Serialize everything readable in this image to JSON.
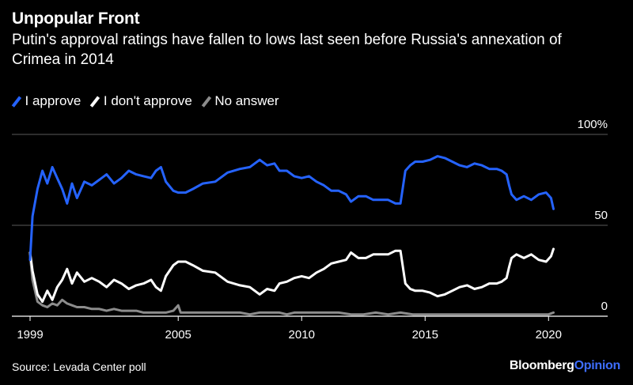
{
  "title": "Unpopular Front",
  "subtitle": "Putin's approval ratings have fallen to lows last seen before Russia's annexation of Crimea in 2014",
  "legend": [
    {
      "label": "I approve",
      "color": "#2563ff"
    },
    {
      "label": "I don't approve",
      "color": "#ffffff"
    },
    {
      "label": "No answer",
      "color": "#8c8c8c"
    }
  ],
  "source": "Source: Levada Center poll",
  "brand": {
    "part1": "Bloomberg",
    "part2": "Opinion"
  },
  "chart_data": {
    "type": "line",
    "x_ticks": [
      "1999",
      "2005",
      "2010",
      "2015",
      "2020"
    ],
    "y_ticks": [
      "100%",
      "50",
      "0"
    ],
    "ylim": [
      0,
      100
    ],
    "xlim": [
      1999.0,
      2020.6
    ],
    "series": [
      {
        "name": "I approve",
        "color": "#2563ff",
        "points": [
          [
            1999.0,
            31
          ],
          [
            1999.1,
            55
          ],
          [
            1999.3,
            70
          ],
          [
            1999.5,
            80
          ],
          [
            1999.7,
            73
          ],
          [
            1999.9,
            82
          ],
          [
            2000.1,
            76
          ],
          [
            2000.3,
            70
          ],
          [
            2000.5,
            62
          ],
          [
            2000.7,
            73
          ],
          [
            2000.9,
            65
          ],
          [
            2001.2,
            74
          ],
          [
            2001.5,
            72
          ],
          [
            2001.8,
            75
          ],
          [
            2002.1,
            78
          ],
          [
            2002.4,
            73
          ],
          [
            2002.7,
            76
          ],
          [
            2003.0,
            80
          ],
          [
            2003.3,
            78
          ],
          [
            2003.6,
            77
          ],
          [
            2003.9,
            76
          ],
          [
            2004.1,
            80
          ],
          [
            2004.3,
            82
          ],
          [
            2004.5,
            74
          ],
          [
            2004.8,
            69
          ],
          [
            2005.0,
            68
          ],
          [
            2005.3,
            68
          ],
          [
            2005.6,
            70
          ],
          [
            2006.0,
            73
          ],
          [
            2006.5,
            74
          ],
          [
            2007.0,
            79
          ],
          [
            2007.5,
            81
          ],
          [
            2007.9,
            82
          ],
          [
            2008.3,
            86
          ],
          [
            2008.6,
            83
          ],
          [
            2008.9,
            84
          ],
          [
            2009.1,
            80
          ],
          [
            2009.4,
            80
          ],
          [
            2009.7,
            77
          ],
          [
            2010.0,
            76
          ],
          [
            2010.3,
            77
          ],
          [
            2010.6,
            74
          ],
          [
            2010.9,
            72
          ],
          [
            2011.2,
            69
          ],
          [
            2011.5,
            69
          ],
          [
            2011.8,
            67
          ],
          [
            2012.0,
            63
          ],
          [
            2012.3,
            66
          ],
          [
            2012.6,
            66
          ],
          [
            2012.9,
            64
          ],
          [
            2013.2,
            64
          ],
          [
            2013.5,
            64
          ],
          [
            2013.8,
            62
          ],
          [
            2014.0,
            62
          ],
          [
            2014.1,
            71
          ],
          [
            2014.2,
            80
          ],
          [
            2014.4,
            83
          ],
          [
            2014.6,
            85
          ],
          [
            2014.9,
            85
          ],
          [
            2015.2,
            86
          ],
          [
            2015.5,
            88
          ],
          [
            2015.8,
            87
          ],
          [
            2016.1,
            85
          ],
          [
            2016.4,
            83
          ],
          [
            2016.7,
            82
          ],
          [
            2017.0,
            84
          ],
          [
            2017.3,
            83
          ],
          [
            2017.6,
            81
          ],
          [
            2017.9,
            81
          ],
          [
            2018.1,
            80
          ],
          [
            2018.3,
            78
          ],
          [
            2018.4,
            72
          ],
          [
            2018.5,
            67
          ],
          [
            2018.7,
            64
          ],
          [
            2019.0,
            66
          ],
          [
            2019.3,
            64
          ],
          [
            2019.6,
            67
          ],
          [
            2019.9,
            68
          ],
          [
            2020.1,
            65
          ],
          [
            2020.2,
            59
          ]
        ]
      },
      {
        "name": "I don't approve",
        "color": "#ffffff",
        "points": [
          [
            1999.0,
            35
          ],
          [
            1999.1,
            25
          ],
          [
            1999.3,
            12
          ],
          [
            1999.5,
            8
          ],
          [
            1999.7,
            14
          ],
          [
            1999.9,
            9
          ],
          [
            2000.1,
            16
          ],
          [
            2000.3,
            20
          ],
          [
            2000.5,
            26
          ],
          [
            2000.7,
            18
          ],
          [
            2000.9,
            24
          ],
          [
            2001.2,
            19
          ],
          [
            2001.5,
            21
          ],
          [
            2001.8,
            19
          ],
          [
            2002.1,
            16
          ],
          [
            2002.4,
            20
          ],
          [
            2002.7,
            18
          ],
          [
            2003.0,
            15
          ],
          [
            2003.3,
            17
          ],
          [
            2003.6,
            18
          ],
          [
            2003.9,
            20
          ],
          [
            2004.1,
            16
          ],
          [
            2004.3,
            14
          ],
          [
            2004.5,
            22
          ],
          [
            2004.8,
            28
          ],
          [
            2005.0,
            30
          ],
          [
            2005.3,
            30
          ],
          [
            2005.6,
            28
          ],
          [
            2006.0,
            25
          ],
          [
            2006.5,
            24
          ],
          [
            2007.0,
            19
          ],
          [
            2007.5,
            17
          ],
          [
            2007.9,
            16
          ],
          [
            2008.3,
            12
          ],
          [
            2008.6,
            15
          ],
          [
            2008.9,
            14
          ],
          [
            2009.1,
            18
          ],
          [
            2009.4,
            19
          ],
          [
            2009.7,
            21
          ],
          [
            2010.0,
            22
          ],
          [
            2010.3,
            21
          ],
          [
            2010.6,
            24
          ],
          [
            2010.9,
            26
          ],
          [
            2011.2,
            29
          ],
          [
            2011.5,
            30
          ],
          [
            2011.8,
            31
          ],
          [
            2012.0,
            35
          ],
          [
            2012.3,
            32
          ],
          [
            2012.6,
            32
          ],
          [
            2012.9,
            34
          ],
          [
            2013.2,
            34
          ],
          [
            2013.5,
            34
          ],
          [
            2013.8,
            36
          ],
          [
            2014.0,
            36
          ],
          [
            2014.1,
            27
          ],
          [
            2014.2,
            18
          ],
          [
            2014.4,
            15
          ],
          [
            2014.6,
            14
          ],
          [
            2014.9,
            14
          ],
          [
            2015.2,
            13
          ],
          [
            2015.5,
            11
          ],
          [
            2015.8,
            12
          ],
          [
            2016.1,
            14
          ],
          [
            2016.4,
            16
          ],
          [
            2016.7,
            17
          ],
          [
            2017.0,
            15
          ],
          [
            2017.3,
            16
          ],
          [
            2017.6,
            18
          ],
          [
            2017.9,
            18
          ],
          [
            2018.1,
            19
          ],
          [
            2018.3,
            21
          ],
          [
            2018.4,
            27
          ],
          [
            2018.5,
            32
          ],
          [
            2018.7,
            34
          ],
          [
            2019.0,
            32
          ],
          [
            2019.3,
            34
          ],
          [
            2019.6,
            31
          ],
          [
            2019.9,
            30
          ],
          [
            2020.1,
            33
          ],
          [
            2020.2,
            37
          ]
        ]
      },
      {
        "name": "No answer",
        "color": "#8c8c8c",
        "points": [
          [
            1999.0,
            34
          ],
          [
            1999.1,
            20
          ],
          [
            1999.3,
            8
          ],
          [
            1999.5,
            6
          ],
          [
            1999.7,
            5
          ],
          [
            1999.9,
            7
          ],
          [
            2000.1,
            6
          ],
          [
            2000.3,
            9
          ],
          [
            2000.5,
            7
          ],
          [
            2000.7,
            6
          ],
          [
            2000.9,
            5
          ],
          [
            2001.2,
            5
          ],
          [
            2001.5,
            4
          ],
          [
            2001.8,
            4
          ],
          [
            2002.1,
            3
          ],
          [
            2002.4,
            4
          ],
          [
            2002.7,
            3
          ],
          [
            2003.0,
            3
          ],
          [
            2003.3,
            3
          ],
          [
            2003.6,
            2
          ],
          [
            2003.9,
            2
          ],
          [
            2004.1,
            2
          ],
          [
            2004.3,
            2
          ],
          [
            2004.5,
            2
          ],
          [
            2004.8,
            3
          ],
          [
            2005.0,
            6
          ],
          [
            2005.1,
            2
          ],
          [
            2005.3,
            2
          ],
          [
            2005.6,
            2
          ],
          [
            2006.0,
            2
          ],
          [
            2006.5,
            2
          ],
          [
            2007.0,
            2
          ],
          [
            2007.5,
            2
          ],
          [
            2007.9,
            1
          ],
          [
            2008.3,
            2
          ],
          [
            2008.6,
            2
          ],
          [
            2008.9,
            2
          ],
          [
            2009.1,
            2
          ],
          [
            2009.4,
            1
          ],
          [
            2009.7,
            2
          ],
          [
            2010.0,
            2
          ],
          [
            2010.5,
            2
          ],
          [
            2011.0,
            2
          ],
          [
            2011.5,
            2
          ],
          [
            2012.0,
            1
          ],
          [
            2012.5,
            1
          ],
          [
            2013.0,
            2
          ],
          [
            2013.5,
            1
          ],
          [
            2014.0,
            2
          ],
          [
            2014.5,
            1
          ],
          [
            2015.0,
            1
          ],
          [
            2015.5,
            1
          ],
          [
            2016.0,
            1
          ],
          [
            2016.5,
            1
          ],
          [
            2017.0,
            1
          ],
          [
            2017.5,
            1
          ],
          [
            2018.0,
            1
          ],
          [
            2018.5,
            1
          ],
          [
            2019.0,
            1
          ],
          [
            2019.5,
            1
          ],
          [
            2020.0,
            1
          ],
          [
            2020.2,
            2
          ]
        ]
      }
    ]
  }
}
